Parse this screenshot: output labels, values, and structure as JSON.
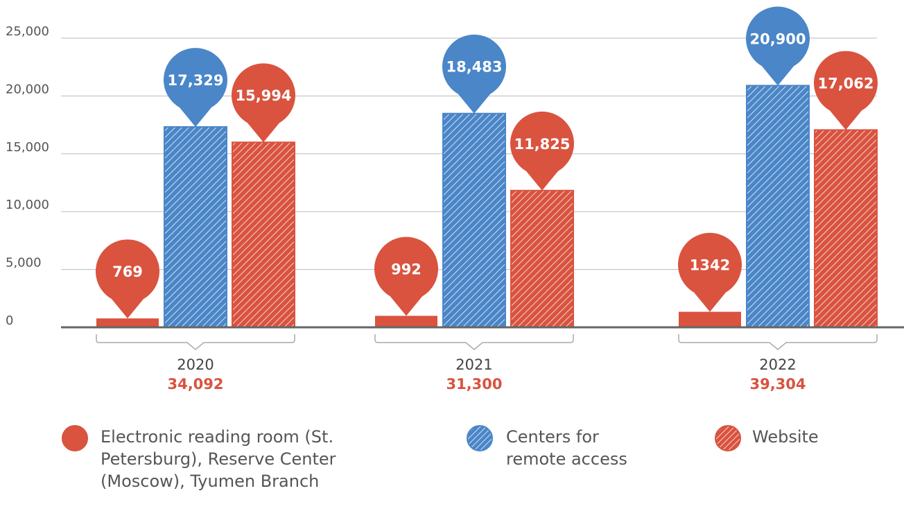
{
  "chart_data": {
    "type": "bar",
    "categories": [
      "2020",
      "2021",
      "2022"
    ],
    "totals": [
      {
        "value": 34092,
        "label": "34,092"
      },
      {
        "value": 31300,
        "label": "31,300"
      },
      {
        "value": 39304,
        "label": "39,304"
      }
    ],
    "series": [
      {
        "name": "Electronic reading room (St. Petersburg), Reserve Center (Moscow), Tyumen Branch",
        "color": "#d9533f",
        "hatched": false,
        "values": [
          769,
          992,
          1342
        ],
        "value_labels": [
          "769",
          "992",
          "1342"
        ]
      },
      {
        "name": "Centers for remote access",
        "color": "#4a86c8",
        "hatched": true,
        "values": [
          17329,
          18483,
          20900
        ],
        "value_labels": [
          "17,329",
          "18,483",
          "20,900"
        ]
      },
      {
        "name": "Website",
        "color": "#d9533f",
        "hatched": true,
        "values": [
          15994,
          11825,
          17062
        ],
        "value_labels": [
          "15,994",
          "11,825",
          "17,062"
        ]
      }
    ],
    "ylim": [
      0,
      25000
    ],
    "yticks": [
      0,
      {
        "value": 5000,
        "label": "5,000"
      },
      {
        "value": 10000,
        "label": "10,000"
      },
      {
        "value": 15000,
        "label": "15,000"
      },
      {
        "value": 20000,
        "label": "20,000"
      },
      {
        "value": 25000,
        "label": "25,000"
      }
    ],
    "grid": true
  }
}
